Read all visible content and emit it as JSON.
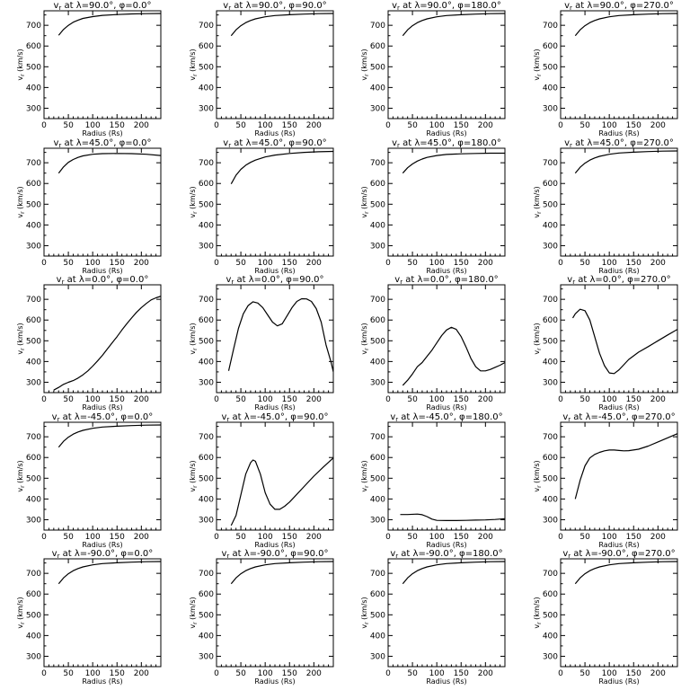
{
  "chart_data": [
    {
      "type": "line",
      "title": "v_r at λ=90.0°, φ=0.0°",
      "xlabel": "Radius (Rs)",
      "ylabel": "v_r (km/s)",
      "xlim": [
        0,
        240
      ],
      "ylim": [
        250,
        770
      ],
      "xticks": [
        0,
        50,
        100,
        150,
        200
      ],
      "yticks": [
        300,
        400,
        500,
        600,
        700
      ],
      "x": [
        30,
        40,
        50,
        60,
        70,
        80,
        100,
        120,
        150,
        180,
        210,
        240
      ],
      "y": [
        652,
        680,
        700,
        715,
        725,
        733,
        742,
        748,
        752,
        755,
        756,
        757
      ]
    },
    {
      "type": "line",
      "title": "v_r at λ=90.0°, φ=90.0°",
      "xlabel": "Radius (Rs)",
      "ylabel": "v_r (km/s)",
      "xlim": [
        0,
        240
      ],
      "ylim": [
        250,
        770
      ],
      "xticks": [
        0,
        50,
        100,
        150,
        200
      ],
      "yticks": [
        300,
        400,
        500,
        600,
        700
      ],
      "x": [
        30,
        40,
        50,
        60,
        70,
        80,
        100,
        120,
        150,
        180,
        210,
        240
      ],
      "y": [
        650,
        678,
        698,
        713,
        723,
        731,
        741,
        747,
        751,
        754,
        756,
        757
      ]
    },
    {
      "type": "line",
      "title": "v_r at λ=90.0°, φ=180.0°",
      "xlabel": "Radius (Rs)",
      "ylabel": "v_r (km/s)",
      "xlim": [
        0,
        240
      ],
      "ylim": [
        250,
        770
      ],
      "xticks": [
        0,
        50,
        100,
        150,
        200
      ],
      "yticks": [
        300,
        400,
        500,
        600,
        700
      ],
      "x": [
        30,
        40,
        50,
        60,
        70,
        80,
        100,
        120,
        150,
        180,
        210,
        240
      ],
      "y": [
        650,
        678,
        698,
        713,
        723,
        731,
        741,
        747,
        751,
        754,
        756,
        757
      ]
    },
    {
      "type": "line",
      "title": "v_r at λ=90.0°, φ=270.0°",
      "xlabel": "Radius (Rs)",
      "ylabel": "v_r (km/s)",
      "xlim": [
        0,
        240
      ],
      "ylim": [
        250,
        770
      ],
      "xticks": [
        0,
        50,
        100,
        150,
        200
      ],
      "yticks": [
        300,
        400,
        500,
        600,
        700
      ],
      "x": [
        30,
        40,
        50,
        60,
        70,
        80,
        100,
        120,
        150,
        180,
        210,
        240
      ],
      "y": [
        650,
        678,
        698,
        713,
        723,
        731,
        741,
        747,
        751,
        754,
        756,
        757
      ]
    },
    {
      "type": "line",
      "title": "v_r at λ=45.0°, φ=0.0°",
      "xlabel": "Radius (Rs)",
      "ylabel": "v_r (km/s)",
      "xlim": [
        0,
        240
      ],
      "ylim": [
        250,
        770
      ],
      "xticks": [
        0,
        50,
        100,
        150,
        200
      ],
      "yticks": [
        300,
        400,
        500,
        600,
        700
      ],
      "x": [
        30,
        40,
        50,
        60,
        70,
        80,
        100,
        120,
        150,
        180,
        210,
        240
      ],
      "y": [
        650,
        680,
        702,
        716,
        726,
        733,
        741,
        744,
        745,
        744,
        741,
        735
      ]
    },
    {
      "type": "line",
      "title": "v_r at λ=45.0°, φ=90.0°",
      "xlabel": "Radius (Rs)",
      "ylabel": "v_r (km/s)",
      "xlim": [
        0,
        240
      ],
      "ylim": [
        250,
        770
      ],
      "xticks": [
        0,
        50,
        100,
        150,
        200
      ],
      "yticks": [
        300,
        400,
        500,
        600,
        700
      ],
      "x": [
        30,
        40,
        50,
        60,
        70,
        80,
        100,
        120,
        150,
        180,
        210,
        240
      ],
      "y": [
        598,
        640,
        668,
        688,
        702,
        713,
        728,
        737,
        745,
        750,
        753,
        755
      ]
    },
    {
      "type": "line",
      "title": "v_r at λ=45.0°, φ=180.0°",
      "xlabel": "Radius (Rs)",
      "ylabel": "v_r (km/s)",
      "xlim": [
        0,
        240
      ],
      "ylim": [
        250,
        770
      ],
      "xticks": [
        0,
        50,
        100,
        150,
        200
      ],
      "yticks": [
        300,
        400,
        500,
        600,
        700
      ],
      "x": [
        30,
        40,
        50,
        60,
        70,
        80,
        100,
        120,
        150,
        180,
        210,
        240
      ],
      "y": [
        650,
        676,
        694,
        708,
        718,
        726,
        735,
        740,
        743,
        745,
        746,
        746
      ]
    },
    {
      "type": "line",
      "title": "v_r at λ=45.0°, φ=270.0°",
      "xlabel": "Radius (Rs)",
      "ylabel": "v_r (km/s)",
      "xlim": [
        0,
        240
      ],
      "ylim": [
        250,
        770
      ],
      "xticks": [
        0,
        50,
        100,
        150,
        200
      ],
      "yticks": [
        300,
        400,
        500,
        600,
        700
      ],
      "x": [
        30,
        40,
        50,
        60,
        70,
        80,
        100,
        120,
        150,
        180,
        210,
        240
      ],
      "y": [
        650,
        678,
        698,
        713,
        723,
        731,
        741,
        747,
        751,
        754,
        756,
        757
      ]
    },
    {
      "type": "line",
      "title": "v_r at λ=0.0°, φ=0.0°",
      "xlabel": "Radius (Rs)",
      "ylabel": "v_r (km/s)",
      "xlim": [
        0,
        240
      ],
      "ylim": [
        250,
        770
      ],
      "xticks": [
        0,
        50,
        100,
        150,
        200
      ],
      "yticks": [
        300,
        400,
        500,
        600,
        700
      ],
      "x": [
        20,
        30,
        40,
        50,
        60,
        70,
        80,
        90,
        100,
        110,
        120,
        130,
        140,
        150,
        160,
        170,
        180,
        190,
        200,
        210,
        220,
        230,
        240
      ],
      "y": [
        262,
        275,
        290,
        300,
        308,
        320,
        336,
        355,
        378,
        403,
        430,
        460,
        490,
        520,
        552,
        582,
        610,
        637,
        660,
        680,
        697,
        707,
        715
      ]
    },
    {
      "type": "line",
      "title": "v_r at λ=0.0°, φ=90.0°",
      "xlabel": "Radius (Rs)",
      "ylabel": "v_r (km/s)",
      "xlim": [
        0,
        240
      ],
      "ylim": [
        250,
        770
      ],
      "xticks": [
        0,
        50,
        100,
        150,
        200
      ],
      "yticks": [
        300,
        400,
        500,
        600,
        700
      ],
      "x": [
        25,
        35,
        45,
        55,
        65,
        75,
        85,
        95,
        105,
        115,
        125,
        135,
        145,
        155,
        165,
        175,
        185,
        195,
        205,
        215,
        225,
        235,
        240
      ],
      "y": [
        355,
        460,
        560,
        630,
        670,
        688,
        682,
        660,
        625,
        590,
        572,
        582,
        620,
        660,
        690,
        703,
        702,
        690,
        655,
        590,
        480,
        400,
        350
      ]
    },
    {
      "type": "line",
      "title": "v_r at λ=0.0°, φ=180.0°",
      "xlabel": "Radius (Rs)",
      "ylabel": "v_r (km/s)",
      "xlim": [
        0,
        240
      ],
      "ylim": [
        250,
        770
      ],
      "xticks": [
        0,
        50,
        100,
        150,
        200
      ],
      "yticks": [
        300,
        400,
        500,
        600,
        700
      ],
      "x": [
        30,
        40,
        50,
        60,
        70,
        80,
        90,
        100,
        110,
        120,
        130,
        140,
        150,
        160,
        170,
        180,
        190,
        200,
        210,
        220,
        230,
        240
      ],
      "y": [
        285,
        310,
        340,
        375,
        395,
        425,
        455,
        490,
        525,
        552,
        565,
        555,
        520,
        470,
        415,
        375,
        355,
        355,
        362,
        372,
        382,
        395
      ]
    },
    {
      "type": "line",
      "title": "v_r at λ=0.0°, φ=270.0°",
      "xlabel": "Radius (Rs)",
      "ylabel": "v_r (km/s)",
      "xlim": [
        0,
        240
      ],
      "ylim": [
        250,
        770
      ],
      "xticks": [
        0,
        50,
        100,
        150,
        200
      ],
      "yticks": [
        300,
        400,
        500,
        600,
        700
      ],
      "x": [
        25,
        30,
        40,
        50,
        60,
        70,
        80,
        90,
        100,
        110,
        120,
        140,
        160,
        180,
        200,
        220,
        240
      ],
      "y": [
        610,
        630,
        652,
        645,
        600,
        520,
        440,
        380,
        345,
        342,
        360,
        410,
        445,
        472,
        500,
        528,
        555
      ]
    },
    {
      "type": "line",
      "title": "v_r at λ=-45.0°, φ=0.0°",
      "xlabel": "Radius (Rs)",
      "ylabel": "v_r (km/s)",
      "xlim": [
        0,
        240
      ],
      "ylim": [
        250,
        770
      ],
      "xticks": [
        0,
        50,
        100,
        150,
        200
      ],
      "yticks": [
        300,
        400,
        500,
        600,
        700
      ],
      "x": [
        30,
        40,
        50,
        60,
        70,
        80,
        100,
        120,
        150,
        180,
        210,
        240
      ],
      "y": [
        650,
        678,
        698,
        713,
        723,
        731,
        741,
        747,
        751,
        754,
        756,
        757
      ]
    },
    {
      "type": "line",
      "title": "v_r at λ=-45.0°, φ=90.0°",
      "xlabel": "Radius (Rs)",
      "ylabel": "v_r (km/s)",
      "xlim": [
        0,
        240
      ],
      "ylim": [
        250,
        770
      ],
      "xticks": [
        0,
        50,
        100,
        150,
        200
      ],
      "yticks": [
        300,
        400,
        500,
        600,
        700
      ],
      "x": [
        30,
        40,
        50,
        60,
        70,
        75,
        80,
        90,
        100,
        110,
        120,
        130,
        140,
        150,
        160,
        180,
        200,
        220,
        240
      ],
      "y": [
        272,
        320,
        420,
        520,
        575,
        588,
        582,
        520,
        430,
        375,
        350,
        350,
        365,
        385,
        410,
        460,
        510,
        555,
        598
      ]
    },
    {
      "type": "line",
      "title": "v_r at λ=-45.0°, φ=180.0°",
      "xlabel": "Radius (Rs)",
      "ylabel": "v_r (km/s)",
      "xlim": [
        0,
        240
      ],
      "ylim": [
        250,
        770
      ],
      "xticks": [
        0,
        50,
        100,
        150,
        200
      ],
      "yticks": [
        300,
        400,
        500,
        600,
        700
      ],
      "x": [
        25,
        40,
        60,
        70,
        80,
        90,
        100,
        120,
        140,
        160,
        180,
        200,
        220,
        240
      ],
      "y": [
        325,
        325,
        327,
        324,
        315,
        303,
        297,
        296,
        296,
        297,
        298,
        299,
        301,
        305
      ]
    },
    {
      "type": "line",
      "title": "v_r at λ=-45.0°, φ=270.0°",
      "xlabel": "Radius (Rs)",
      "ylabel": "v_r (km/s)",
      "xlim": [
        0,
        240
      ],
      "ylim": [
        250,
        770
      ],
      "xticks": [
        0,
        50,
        100,
        150,
        200
      ],
      "yticks": [
        300,
        400,
        500,
        600,
        700
      ],
      "x": [
        30,
        40,
        50,
        60,
        70,
        80,
        90,
        100,
        110,
        120,
        130,
        140,
        160,
        180,
        200,
        220,
        240
      ],
      "y": [
        400,
        490,
        560,
        598,
        615,
        625,
        632,
        636,
        636,
        634,
        632,
        633,
        640,
        655,
        675,
        695,
        715
      ]
    },
    {
      "type": "line",
      "title": "v_r at λ=-90.0°, φ=0.0°",
      "xlabel": "Radius (Rs)",
      "ylabel": "v_r (km/s)",
      "xlim": [
        0,
        240
      ],
      "ylim": [
        250,
        770
      ],
      "xticks": [
        0,
        50,
        100,
        150,
        200
      ],
      "yticks": [
        300,
        400,
        500,
        600,
        700
      ],
      "x": [
        30,
        40,
        50,
        60,
        70,
        80,
        100,
        120,
        150,
        180,
        210,
        240
      ],
      "y": [
        650,
        678,
        698,
        713,
        723,
        731,
        741,
        747,
        751,
        754,
        756,
        757
      ]
    },
    {
      "type": "line",
      "title": "v_r at λ=-90.0°, φ=90.0°",
      "xlabel": "Radius (Rs)",
      "ylabel": "v_r (km/s)",
      "xlim": [
        0,
        240
      ],
      "ylim": [
        250,
        770
      ],
      "xticks": [
        0,
        50,
        100,
        150,
        200
      ],
      "yticks": [
        300,
        400,
        500,
        600,
        700
      ],
      "x": [
        30,
        40,
        50,
        60,
        70,
        80,
        100,
        120,
        150,
        180,
        210,
        240
      ],
      "y": [
        650,
        678,
        698,
        713,
        723,
        731,
        741,
        747,
        751,
        754,
        756,
        757
      ]
    },
    {
      "type": "line",
      "title": "v_r at λ=-90.0°, φ=180.0°",
      "xlabel": "Radius (Rs)",
      "ylabel": "v_r (km/s)",
      "xlim": [
        0,
        240
      ],
      "ylim": [
        250,
        770
      ],
      "xticks": [
        0,
        50,
        100,
        150,
        200
      ],
      "yticks": [
        300,
        400,
        500,
        600,
        700
      ],
      "x": [
        30,
        40,
        50,
        60,
        70,
        80,
        100,
        120,
        150,
        180,
        210,
        240
      ],
      "y": [
        650,
        678,
        698,
        713,
        723,
        731,
        741,
        747,
        751,
        754,
        756,
        757
      ]
    },
    {
      "type": "line",
      "title": "v_r at λ=-90.0°, φ=270.0°",
      "xlabel": "Radius (Rs)",
      "ylabel": "v_r (km/s)",
      "xlim": [
        0,
        240
      ],
      "ylim": [
        250,
        770
      ],
      "xticks": [
        0,
        50,
        100,
        150,
        200
      ],
      "yticks": [
        300,
        400,
        500,
        600,
        700
      ],
      "x": [
        30,
        40,
        50,
        60,
        70,
        80,
        100,
        120,
        150,
        180,
        210,
        240
      ],
      "y": [
        650,
        678,
        698,
        713,
        723,
        731,
        741,
        747,
        751,
        754,
        756,
        757
      ]
    }
  ]
}
